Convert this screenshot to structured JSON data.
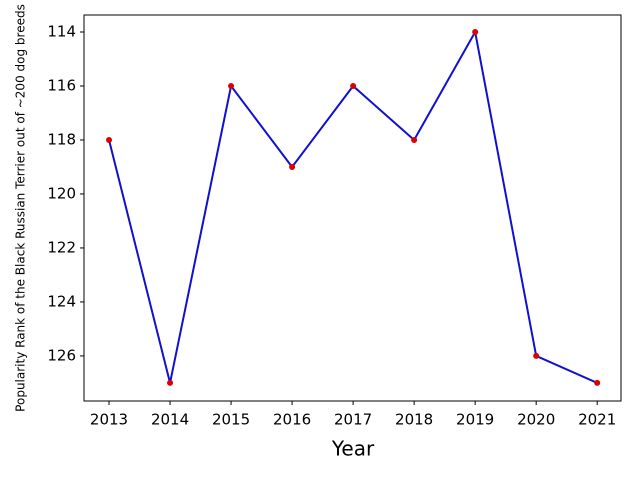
{
  "chart_data": {
    "type": "line",
    "x_label": "Year",
    "y_label": "Popularity Rank of the Black Russian Terrier out of ~200 dog breeds",
    "x": [
      2013,
      2014,
      2015,
      2016,
      2017,
      2018,
      2019,
      2020,
      2021
    ],
    "series": [
      {
        "values": [
          118,
          127,
          116,
          119,
          116,
          118,
          114,
          126,
          127
        ],
        "color": "#1010d0",
        "marker_color": "#dd0000"
      }
    ],
    "xlim": [
      2012.59,
      2021.39
    ],
    "xticks": [
      2013,
      2014,
      2015,
      2016,
      2017,
      2018,
      2019,
      2020,
      2021
    ],
    "ylim": [
      127.67,
      113.37
    ],
    "yticks": [
      114,
      116,
      118,
      120,
      122,
      124,
      126
    ],
    "grid": false
  }
}
